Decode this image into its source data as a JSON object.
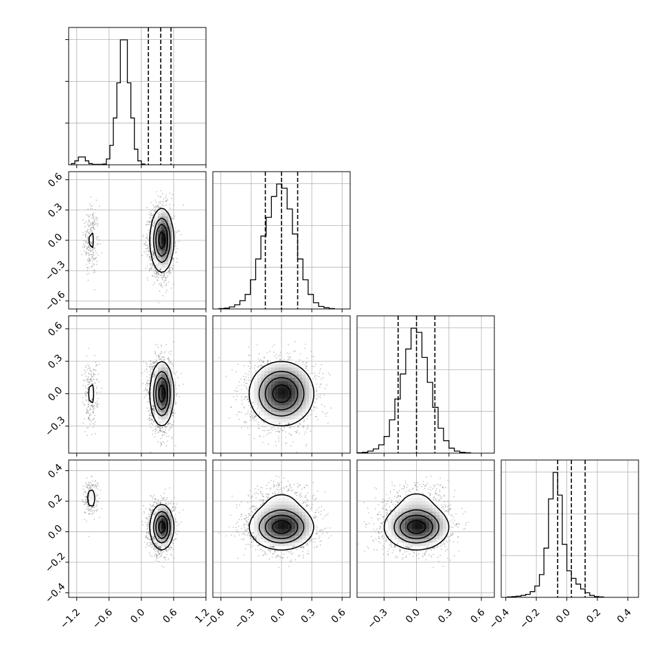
{
  "chart_data": {
    "type": "corner",
    "title": "",
    "grid": true,
    "params": [
      {
        "range": [
          -1.35,
          1.2
        ],
        "ticks": [
          -1.2,
          -0.6,
          0.0,
          0.6,
          1.2
        ],
        "tick_labels": [
          "−1.2",
          "−0.6",
          "0.0",
          "0.6",
          "1.2"
        ]
      },
      {
        "range": [
          -0.68,
          0.68
        ],
        "ticks": [
          -0.6,
          -0.3,
          0.0,
          0.3,
          0.6
        ],
        "tick_labels": [
          "−0.6",
          "−0.3",
          "0.0",
          "0.3",
          "0.6"
        ]
      },
      {
        "range": [
          -0.55,
          0.72
        ],
        "ticks": [
          -0.3,
          0.0,
          0.3,
          0.6
        ],
        "tick_labels": [
          "−0.3",
          "0.0",
          "0.3",
          "0.6"
        ]
      },
      {
        "range": [
          -0.43,
          0.47
        ],
        "ticks": [
          -0.4,
          -0.2,
          0.0,
          0.2,
          0.4
        ],
        "tick_labels": [
          "−0.4",
          "−0.2",
          "0.0",
          "0.2",
          "0.4"
        ]
      }
    ],
    "histograms": [
      {
        "edges_start": -1.3,
        "bin_width": 0.065,
        "counts": [
          3,
          10,
          20,
          20,
          10,
          3,
          1,
          1,
          1,
          2,
          15,
          50,
          120,
          210,
          320,
          320,
          210,
          120,
          40,
          10,
          2
        ],
        "quantiles": [
          0.13,
          0.36,
          0.55
        ]
      },
      {
        "edges_start": -0.62,
        "bin_width": 0.052,
        "counts": [
          1,
          2,
          5,
          10,
          20,
          35,
          70,
          120,
          175,
          220,
          270,
          300,
          290,
          240,
          180,
          120,
          70,
          35,
          15,
          6,
          3,
          1
        ],
        "quantiles": [
          -0.16,
          0.0,
          0.16
        ]
      },
      {
        "edges_start": -0.55,
        "bin_width": 0.05,
        "counts": [
          1,
          2,
          5,
          10,
          20,
          40,
          80,
          130,
          190,
          250,
          300,
          290,
          230,
          170,
          110,
          60,
          30,
          12,
          5,
          2,
          1
        ],
        "quantiles": [
          -0.17,
          0.0,
          0.17
        ]
      },
      {
        "edges_start": -0.39,
        "bin_width": 0.03,
        "counts": [
          1,
          2,
          3,
          5,
          8,
          15,
          30,
          60,
          130,
          260,
          330,
          270,
          140,
          70,
          50,
          35,
          22,
          12,
          5,
          2,
          1
        ],
        "quantiles": [
          -0.06,
          0.03,
          0.12
        ]
      }
    ],
    "components": [
      {
        "weight": 0.1,
        "mean": [
          -0.93,
          0.0,
          0.0,
          0.22
        ],
        "sd": [
          0.07,
          0.17,
          0.15,
          0.06
        ]
      },
      {
        "weight": 0.9,
        "mean": [
          0.38,
          0.0,
          0.0,
          0.03
        ],
        "sd": [
          0.11,
          0.16,
          0.15,
          0.075
        ]
      }
    ],
    "contour_levels": [
      0.5,
      1.0,
      1.5,
      2.0
    ]
  }
}
